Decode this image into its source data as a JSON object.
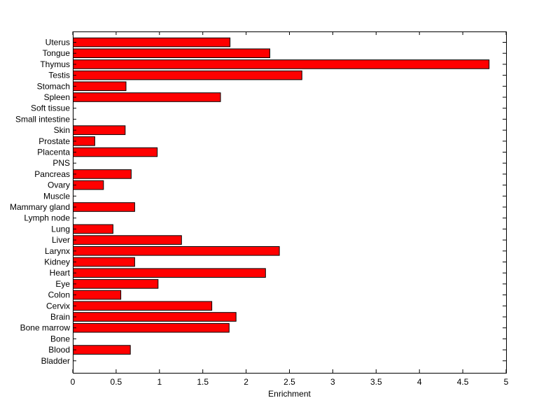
{
  "chart_data": {
    "type": "bar",
    "orientation": "horizontal",
    "categories": [
      "Uterus",
      "Tongue",
      "Thymus",
      "Testis",
      "Stomach",
      "Spleen",
      "Soft tissue",
      "Small intestine",
      "Skin",
      "Prostate",
      "Placenta",
      "PNS",
      "Pancreas",
      "Ovary",
      "Muscle",
      "Mammary gland",
      "Lymph node",
      "Lung",
      "Liver",
      "Larynx",
      "Kidney",
      "Heart",
      "Eye",
      "Colon",
      "Cervix",
      "Brain",
      "Bone marrow",
      "Bone",
      "Blood",
      "Bladder"
    ],
    "values": [
      1.81,
      2.27,
      4.8,
      2.64,
      0.61,
      1.7,
      0,
      0,
      0.6,
      0.25,
      0.97,
      0,
      0.67,
      0.35,
      0,
      0.71,
      0,
      0.46,
      1.25,
      2.38,
      0.71,
      2.22,
      0.98,
      0.55,
      1.6,
      1.88,
      1.8,
      0,
      0.66,
      0
    ],
    "xlabel": "Enrichment",
    "ylabel": "",
    "title": "",
    "xlim": [
      0,
      5
    ],
    "xticks": [
      "0",
      "0.5",
      "1",
      "1.5",
      "2",
      "2.5",
      "3",
      "3.5",
      "4",
      "4.5",
      "5"
    ],
    "grid": false,
    "bar_color": "#ff0000",
    "bar_edge_color": "#000000"
  }
}
